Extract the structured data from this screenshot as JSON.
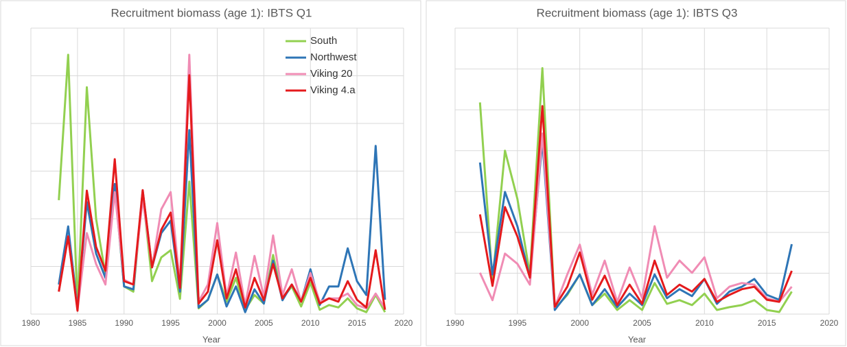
{
  "chart_data": [
    {
      "type": "line",
      "title": "Recruitment biomass (age 1): IBTS Q1",
      "x_label": "Year",
      "x": [
        1983,
        1984,
        1985,
        1986,
        1987,
        1988,
        1989,
        1990,
        1991,
        1992,
        1993,
        1994,
        1995,
        1996,
        1997,
        1998,
        1999,
        2000,
        2001,
        2002,
        2003,
        2004,
        2005,
        2006,
        2007,
        2008,
        2009,
        2010,
        2011,
        2012,
        2013,
        2014,
        2015,
        2016,
        2017,
        2018
      ],
      "xlim": [
        1980,
        2020
      ],
      "xticks": [
        1980,
        1985,
        1990,
        1995,
        2000,
        2005,
        2010,
        2015,
        2020
      ],
      "ylim": [
        0,
        6
      ],
      "yticks": [
        0,
        1,
        2,
        3,
        4,
        5,
        6
      ],
      "grid": true,
      "legend": "upper right",
      "series": [
        {
          "name": "South",
          "color": "#92d050",
          "values": [
            2.39,
            5.44,
            0.12,
            4.76,
            2.0,
            0.83,
            2.68,
            0.58,
            0.47,
            2.53,
            0.69,
            1.19,
            1.34,
            0.32,
            2.78,
            0.12,
            0.3,
            0.83,
            0.26,
            0.76,
            0.09,
            0.4,
            0.22,
            1.24,
            0.33,
            0.58,
            0.16,
            0.66,
            0.09,
            0.19,
            0.14,
            0.33,
            0.12,
            0.04,
            0.4,
            0.04
          ]
        },
        {
          "name": "Northwest",
          "color": "#2e75b6",
          "values": [
            0.62,
            1.84,
            0.12,
            2.35,
            1.27,
            0.76,
            2.73,
            0.58,
            0.52,
            2.59,
            0.98,
            1.7,
            1.96,
            0.47,
            3.86,
            0.14,
            0.3,
            0.83,
            0.16,
            0.58,
            0.04,
            0.52,
            0.22,
            1.12,
            0.29,
            0.62,
            0.26,
            0.94,
            0.19,
            0.58,
            0.58,
            1.38,
            0.69,
            0.4,
            3.53,
            0.3
          ]
        },
        {
          "name": "Viking 20",
          "color": "#f08cb4",
          "values": [
            0.47,
            1.63,
            0.09,
            1.7,
            1.05,
            0.62,
            2.56,
            0.72,
            0.62,
            2.42,
            0.98,
            2.2,
            2.56,
            0.62,
            5.44,
            0.26,
            0.62,
            1.91,
            0.37,
            1.29,
            0.19,
            1.22,
            0.36,
            1.65,
            0.4,
            0.94,
            0.26,
            0.86,
            0.26,
            0.33,
            0.33,
            0.43,
            0.19,
            0.12,
            0.43,
            0.12
          ]
        },
        {
          "name": "Viking 4.a",
          "color": "#e41a1c",
          "values": [
            0.47,
            1.63,
            0.07,
            2.59,
            1.41,
            0.91,
            3.25,
            0.69,
            0.62,
            2.6,
            0.98,
            1.77,
            2.13,
            0.55,
            5.01,
            0.22,
            0.47,
            1.55,
            0.33,
            0.94,
            0.14,
            0.76,
            0.29,
            1.05,
            0.33,
            0.62,
            0.26,
            0.76,
            0.22,
            0.33,
            0.26,
            0.69,
            0.3,
            0.14,
            1.34,
            0.09
          ]
        }
      ]
    },
    {
      "type": "line",
      "title": "Recruitment biomass (age 1): IBTS Q3",
      "x_label": "Year",
      "x": [
        1992,
        1993,
        1994,
        1995,
        1996,
        1997,
        1998,
        1999,
        2000,
        2001,
        2002,
        2003,
        2004,
        2005,
        2006,
        2007,
        2008,
        2009,
        2010,
        2011,
        2012,
        2013,
        2014,
        2015,
        2016,
        2017
      ],
      "xlim": [
        1990,
        2020
      ],
      "xticks": [
        1990,
        1995,
        2000,
        2005,
        2010,
        2015,
        2020
      ],
      "ylim": [
        0,
        7
      ],
      "yticks": [
        0,
        1,
        2,
        3,
        4,
        5,
        6,
        7
      ],
      "grid": true,
      "series": [
        {
          "color": "#92d050",
          "values": [
            5.18,
            0.81,
            4.0,
            2.82,
            0.97,
            6.02,
            0.13,
            0.47,
            0.97,
            0.22,
            0.5,
            0.1,
            0.34,
            0.1,
            0.76,
            0.25,
            0.34,
            0.22,
            0.5,
            0.1,
            0.17,
            0.22,
            0.34,
            0.1,
            0.05,
            0.55
          ]
        },
        {
          "color": "#2e75b6",
          "values": [
            3.71,
            0.97,
            2.99,
            2.15,
            0.89,
            4.25,
            0.1,
            0.5,
            0.97,
            0.22,
            0.61,
            0.17,
            0.5,
            0.22,
            0.97,
            0.39,
            0.61,
            0.44,
            0.86,
            0.25,
            0.55,
            0.67,
            0.86,
            0.47,
            0.35,
            1.71
          ]
        },
        {
          "color": "#f08cb4",
          "values": [
            1.01,
            0.34,
            1.48,
            1.23,
            0.72,
            4.42,
            0.17,
            0.97,
            1.7,
            0.47,
            1.31,
            0.3,
            1.14,
            0.39,
            2.15,
            0.89,
            1.31,
            1.01,
            1.39,
            0.39,
            0.67,
            0.76,
            0.72,
            0.39,
            0.3,
            0.67
          ]
        },
        {
          "color": "#e41a1c",
          "values": [
            2.44,
            0.69,
            2.62,
            1.9,
            0.89,
            5.09,
            0.18,
            0.67,
            1.51,
            0.35,
            0.94,
            0.22,
            0.72,
            0.25,
            1.31,
            0.47,
            0.72,
            0.55,
            0.86,
            0.3,
            0.47,
            0.61,
            0.67,
            0.35,
            0.3,
            1.06
          ]
        }
      ]
    }
  ]
}
